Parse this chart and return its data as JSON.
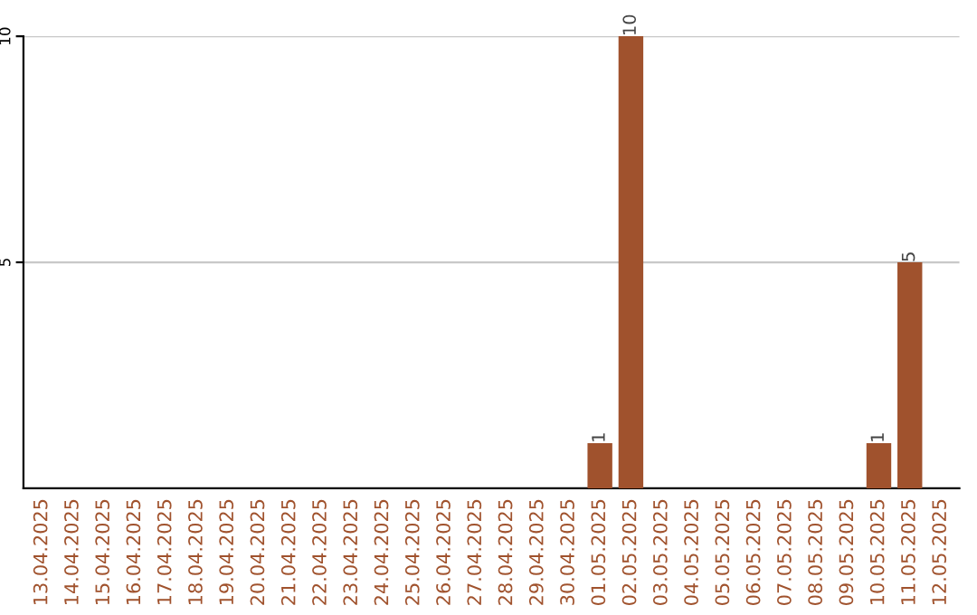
{
  "chart_data": {
    "type": "bar",
    "categories": [
      "13.04.2025",
      "14.04.2025",
      "15.04.2025",
      "16.04.2025",
      "17.04.2025",
      "18.04.2025",
      "19.04.2025",
      "20.04.2025",
      "21.04.2025",
      "22.04.2025",
      "23.04.2025",
      "24.04.2025",
      "25.04.2025",
      "26.04.2025",
      "27.04.2025",
      "28.04.2025",
      "29.04.2025",
      "30.04.2025",
      "01.05.2025",
      "02.05.2025",
      "03.05.2025",
      "04.05.2025",
      "05.05.2025",
      "06.05.2025",
      "07.05.2025",
      "08.05.2025",
      "09.05.2025",
      "10.05.2025",
      "11.05.2025",
      "12.05.2025"
    ],
    "values": [
      0,
      0,
      0,
      0,
      0,
      0,
      0,
      0,
      0,
      0,
      0,
      0,
      0,
      0,
      0,
      0,
      0,
      0,
      1,
      10,
      0,
      0,
      0,
      0,
      0,
      0,
      0,
      1,
      5,
      0
    ],
    "value_labels": [
      null,
      null,
      null,
      null,
      null,
      null,
      null,
      null,
      null,
      null,
      null,
      null,
      null,
      null,
      null,
      null,
      null,
      null,
      "1",
      "10",
      null,
      null,
      null,
      null,
      null,
      null,
      null,
      "1",
      "5",
      null
    ],
    "color": "#a0522d",
    "ylim": [
      0,
      10
    ],
    "yticks": [
      5,
      10
    ],
    "grid": "y"
  }
}
